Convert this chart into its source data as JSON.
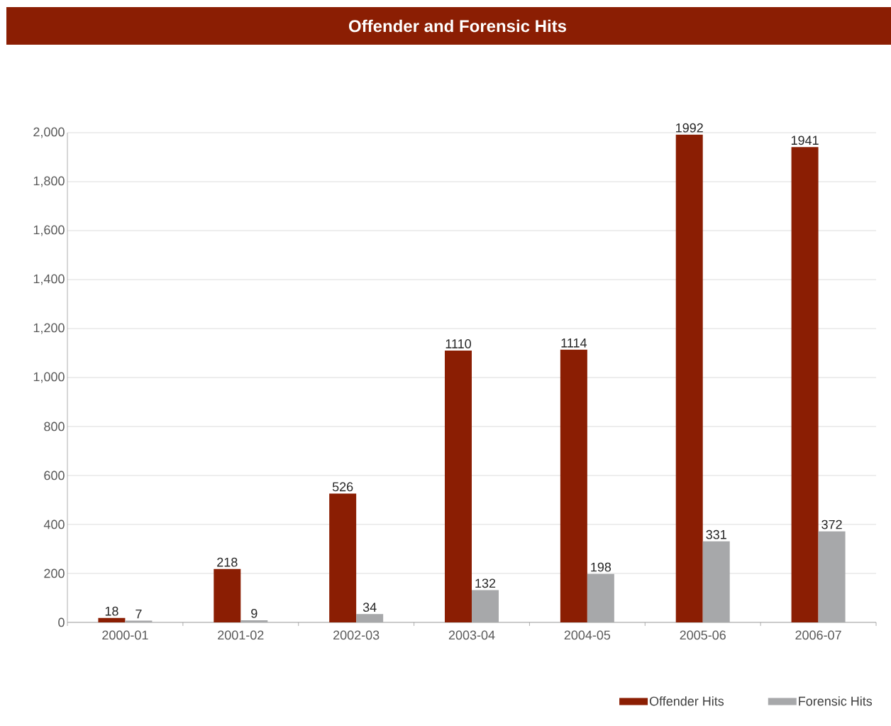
{
  "chart_data": {
    "type": "bar",
    "title": "Offender and Forensic Hits",
    "categories": [
      "2000-01",
      "2001-02",
      "2002-03",
      "2003-04",
      "2004-05",
      "2005-06",
      "2006-07"
    ],
    "series": [
      {
        "name": "Offender Hits",
        "color": "#8b1e03",
        "values": [
          18,
          218,
          526,
          1110,
          1114,
          1992,
          1941
        ]
      },
      {
        "name": "Forensic Hits",
        "color": "#a7a8aa",
        "values": [
          7,
          9,
          34,
          132,
          198,
          331,
          372
        ]
      }
    ],
    "ylim": [
      0,
      2000
    ],
    "yticks": [
      0,
      200,
      400,
      600,
      800,
      {
        "value": 1000,
        "label": "1,000"
      },
      {
        "value": 1200,
        "label": "1,200"
      },
      {
        "value": 1400,
        "label": "1,400"
      },
      {
        "value": 1600,
        "label": "1,600"
      },
      {
        "value": 1800,
        "label": "1,800"
      },
      {
        "value": 2000,
        "label": "2,000"
      }
    ],
    "grid": "y",
    "legend": "bottom right",
    "data_labels": true
  }
}
